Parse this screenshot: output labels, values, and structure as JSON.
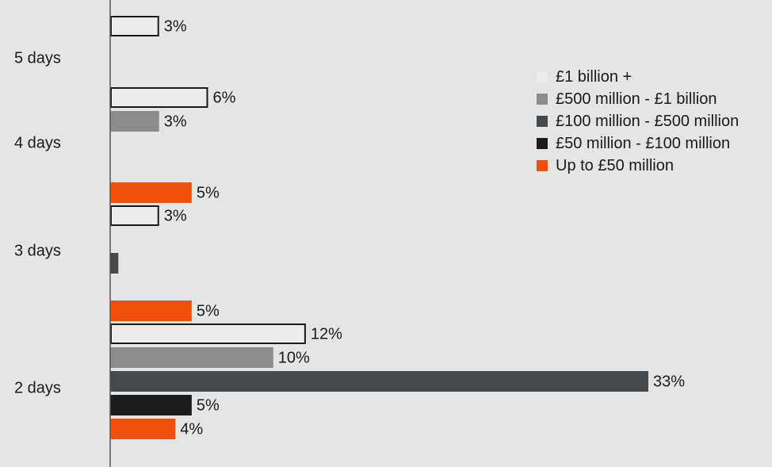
{
  "chart_data": {
    "type": "bar",
    "orientation": "horizontal",
    "categories": [
      "5 days",
      "4 days",
      "3 days",
      "2 days"
    ],
    "series": [
      {
        "name": "£1 billion +",
        "color": "#ececec",
        "outlined": true,
        "values": [
          3,
          6,
          3,
          12
        ],
        "labels": [
          "3%",
          "6%",
          "3%",
          "12%"
        ]
      },
      {
        "name": "£500 million - £1 billion",
        "color": "#8b8c8e",
        "values": [
          0,
          3,
          0,
          10
        ],
        "labels": [
          null,
          "3%",
          null,
          "10%"
        ]
      },
      {
        "name": "£100 million - £500 million",
        "color": "#474a4d",
        "values": [
          0,
          0,
          0.5,
          33
        ],
        "labels": [
          null,
          null,
          null,
          "33%"
        ]
      },
      {
        "name": "£50 million - £100 million",
        "color": "#1d1c1c",
        "values": [
          0,
          0,
          0,
          5
        ],
        "labels": [
          null,
          null,
          null,
          "5%"
        ]
      },
      {
        "name": "Up to £50 million",
        "color": "#f0500c",
        "values": [
          0,
          5,
          5,
          4
        ],
        "labels": [
          null,
          "5%",
          "5%",
          "4%"
        ]
      }
    ],
    "xlim": [
      0,
      33
    ],
    "xlabel": "",
    "ylabel": "",
    "legend_position": "top-right",
    "grid": false
  }
}
